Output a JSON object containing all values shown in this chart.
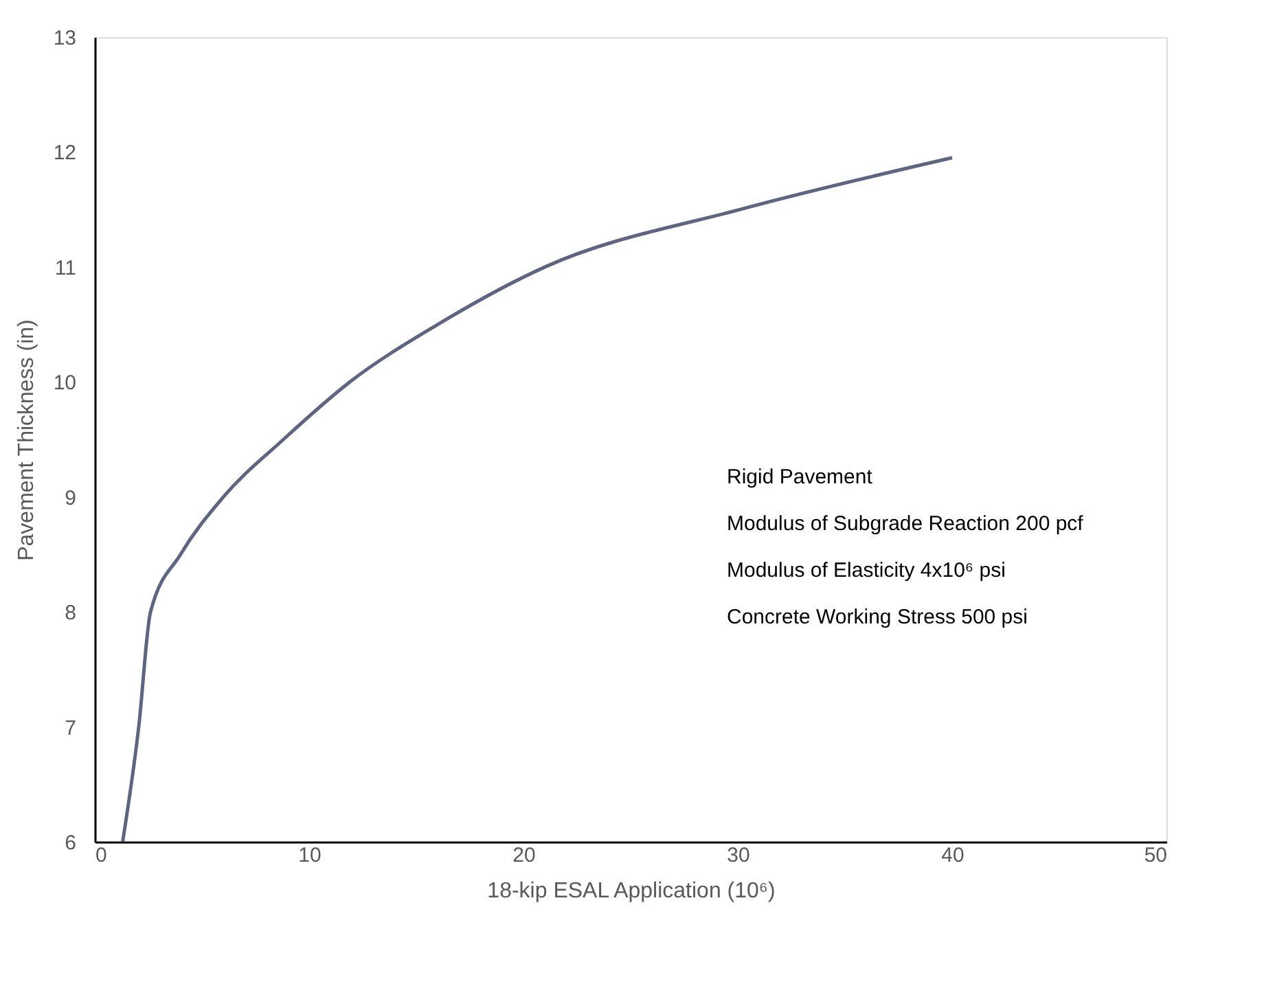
{
  "chart_data": {
    "type": "line",
    "xlabel": "18-kip ESAL Application (10⁶)",
    "ylabel": "Pavement Thickness (in)",
    "x": [
      1.3,
      2.05,
      2.6,
      4.0,
      6.0,
      8.8,
      11.9,
      16.0,
      21.0,
      30.1,
      40.0
    ],
    "series": [
      {
        "color": "#5f6480",
        "values": [
          6,
          7,
          8,
          8.5,
          9,
          9.5,
          10,
          10.5,
          11,
          11.5,
          11.95
        ]
      }
    ],
    "xlim": [
      0,
      50
    ],
    "ylim": [
      6,
      13
    ],
    "xticks": [
      0,
      10,
      20,
      30,
      40,
      50
    ],
    "yticks": [
      6,
      7,
      8,
      9,
      10,
      11,
      12,
      13
    ],
    "grid": false,
    "marker": "none",
    "line_style": "solid",
    "annotations": [
      "Rigid Pavement",
      "Modulus of Subgrade Reaction 200 pcf",
      "Modulus of Elasticity 4x10⁶ psi",
      "Concrete Working Stress 500 psi"
    ]
  }
}
